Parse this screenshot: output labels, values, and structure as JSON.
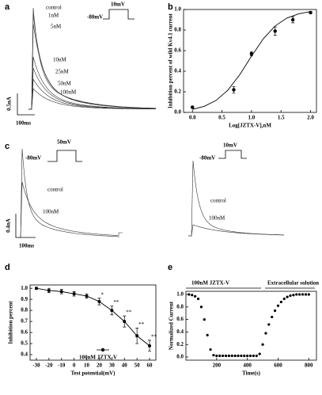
{
  "chart_data": [
    {
      "type": "traces",
      "panel": "a",
      "trace_labels": [
        "control",
        "1nM",
        "5nM",
        "10nM",
        "25nM",
        "50nM",
        "100nM"
      ],
      "protocol": {
        "hold": "-80mV",
        "step": "10mV"
      },
      "scale": {
        "current": "0.5nA",
        "time": "100ms"
      }
    },
    {
      "type": "scatter",
      "panel": "b",
      "xlabel": "Log[JZTX-V],nM",
      "ylabel": "Inhibition percent of wild Kv4.1 current",
      "x": [
        0,
        0.7,
        1.0,
        1.4,
        1.7,
        2.0
      ],
      "values": [
        0.05,
        0.22,
        0.57,
        0.79,
        0.9,
        0.97
      ],
      "errors": [
        0.01,
        0.03,
        0.02,
        0.04,
        0.03,
        0.01
      ],
      "fit_x": [
        0,
        0.2,
        0.4,
        0.6,
        0.8,
        1.0,
        1.2,
        1.4,
        1.6,
        1.8,
        2.0
      ],
      "fit_values": [
        0.029,
        0.059,
        0.116,
        0.216,
        0.365,
        0.546,
        0.715,
        0.84,
        0.917,
        0.958,
        0.98
      ],
      "xlim": [
        -0.15,
        2.1
      ],
      "ylim": [
        0,
        1.0
      ],
      "xticks": [
        {
          "value": 0,
          "label": "0.0"
        },
        {
          "value": 0.5,
          "label": "0.5"
        },
        {
          "value": 1,
          "label": "1.0"
        },
        {
          "value": 1.5,
          "label": "1.5"
        },
        {
          "value": 2,
          "label": "2.0"
        }
      ],
      "yticks": [
        {
          "value": 0,
          "label": "0.0"
        },
        0.2,
        0.4,
        0.6,
        0.8,
        {
          "value": 1,
          "label": "1.0"
        }
      ],
      "color": "#000000"
    },
    {
      "type": "traces",
      "panel": "c",
      "left": {
        "hold": "-80mV",
        "step": "50mV",
        "trace_labels": [
          "control",
          "100nM"
        ]
      },
      "right": {
        "hold": "-80mV",
        "step": "10mV",
        "trace_labels": [
          "control",
          "100nM"
        ]
      },
      "scale": {
        "current": "0.4nA",
        "time": "100ms"
      }
    },
    {
      "type": "line",
      "panel": "d",
      "xlabel": "Test potential(mV)",
      "ylabel": "Inhibition percent",
      "legend": "100nM JZTX-V",
      "x": [
        -30,
        -20,
        -10,
        0,
        10,
        20,
        30,
        40,
        50,
        60
      ],
      "values": [
        1.0,
        0.98,
        0.97,
        0.95,
        0.93,
        0.88,
        0.8,
        0.7,
        0.57,
        0.48
      ],
      "errors": [
        0.01,
        0.02,
        0.02,
        0.02,
        0.02,
        0.03,
        0.04,
        0.05,
        0.07,
        0.05
      ],
      "significance": [
        null,
        null,
        null,
        null,
        null,
        "*",
        "**",
        "**",
        "**",
        "**"
      ],
      "xlim": [
        -35,
        65
      ],
      "ylim": [
        0.35,
        1.03
      ],
      "xticks": [
        -30,
        -20,
        -10,
        0,
        10,
        20,
        30,
        40,
        50,
        60
      ],
      "yticks": [
        0.4,
        0.5,
        0.6,
        0.7,
        0.8,
        0.9,
        {
          "value": 1,
          "label": "1.0"
        }
      ],
      "color": "#000000"
    },
    {
      "type": "scatter",
      "panel": "e",
      "xlabel": "Time(s)",
      "ylabel": "Normalized Current",
      "phases": [
        "100nM JZTX-V",
        "Extracellular solution"
      ],
      "x": [
        20,
        40,
        60,
        80,
        100,
        120,
        140,
        160,
        180,
        200,
        220,
        240,
        260,
        280,
        300,
        320,
        340,
        360,
        380,
        400,
        420,
        440,
        460,
        480,
        500,
        520,
        540,
        560,
        580,
        600,
        620,
        640,
        660,
        680,
        700,
        720,
        740,
        760,
        780,
        800
      ],
      "values": [
        1.0,
        0.99,
        0.97,
        0.93,
        0.8,
        0.6,
        0.35,
        0.12,
        0.03,
        0.02,
        0.02,
        0.02,
        0.02,
        0.02,
        0.02,
        0.02,
        0.02,
        0.02,
        0.02,
        0.02,
        0.02,
        0.02,
        0.02,
        0.05,
        0.2,
        0.38,
        0.52,
        0.64,
        0.74,
        0.82,
        0.88,
        0.93,
        0.96,
        0.98,
        0.99,
        1.0,
        1.0,
        1.0,
        1.0,
        1.0
      ],
      "xlim": [
        0,
        850
      ],
      "ylim": [
        -0.05,
        1.05
      ],
      "xticks": [
        200,
        400,
        600,
        800
      ],
      "yticks": [
        {
          "value": 0,
          "label": "0.0"
        },
        0.2,
        0.4,
        0.6,
        0.8,
        {
          "value": 1,
          "label": "1.0"
        }
      ],
      "color": "#000000"
    }
  ]
}
